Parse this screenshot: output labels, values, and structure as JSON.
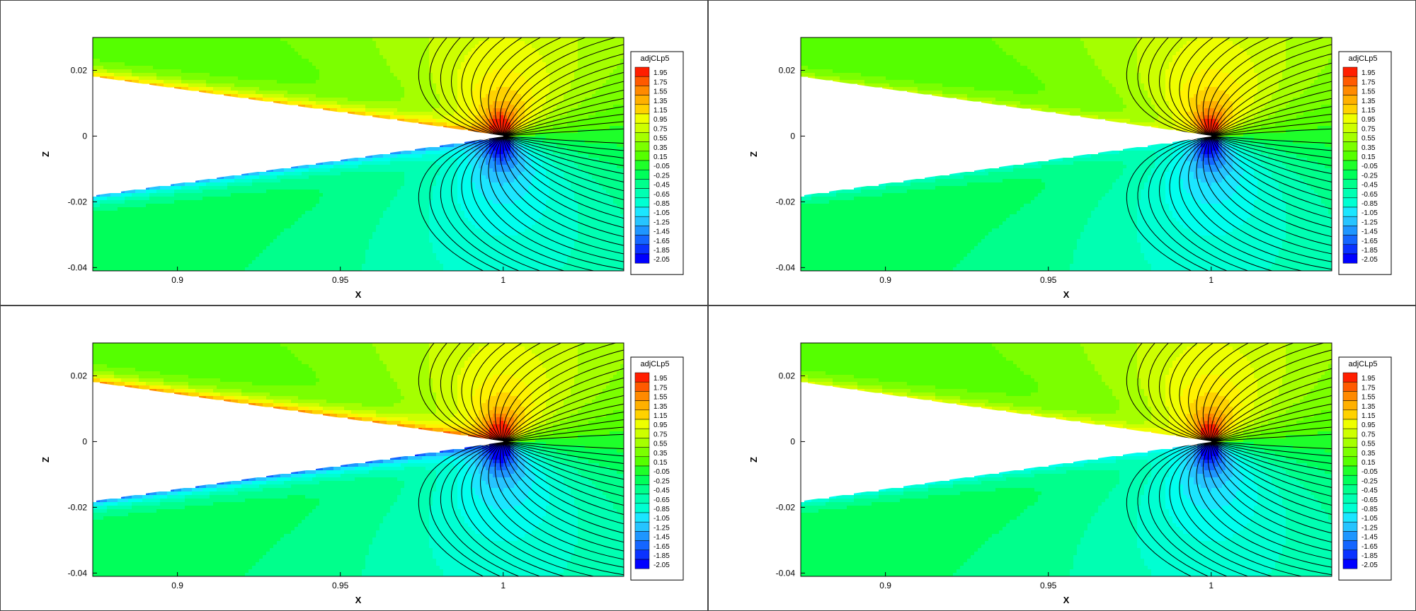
{
  "palette": {
    "levels": [
      "#0000ff",
      "#0a32ff",
      "#1466ff",
      "#1e96ff",
      "#26c4ff",
      "#1be6ff",
      "#00ffee",
      "#00ffd2",
      "#00ffb2",
      "#00ff8c",
      "#00ff5a",
      "#1eff2a",
      "#55ff00",
      "#7bff00",
      "#a5ff00",
      "#cdff00",
      "#eeff00",
      "#fff200",
      "#ffd200",
      "#ffb000",
      "#ff8a00",
      "#ff5a00",
      "#ff1e00"
    ],
    "outline": "#000000"
  },
  "chart_data": [
    {
      "type": "heatmap",
      "subtype": "filled-contour",
      "xlabel": "X",
      "ylabel": "Z",
      "xlim": [
        0.874,
        1.037
      ],
      "ylim": [
        -0.041,
        0.03
      ],
      "xticks": [
        {
          "v": 0.9,
          "label": "0.9"
        },
        {
          "v": 0.95,
          "label": "0.95"
        },
        {
          "v": 1,
          "label": "1"
        }
      ],
      "yticks": [
        {
          "v": 0.02,
          "label": "0.02"
        },
        {
          "v": 0,
          "label": "0"
        },
        {
          "v": -0.02,
          "label": "-0.02"
        },
        {
          "v": -0.04,
          "label": "-0.04"
        }
      ],
      "legend": {
        "title": "adjCLp5",
        "position": "right",
        "levels": [
          "1.95",
          "1.75",
          "1.55",
          "1.35",
          "1.15",
          "0.95",
          "0.75",
          "0.55",
          "0.35",
          "0.15",
          "-0.05",
          "-0.25",
          "-0.45",
          "-0.65",
          "-0.85",
          "-1.05",
          "-1.25",
          "-1.45",
          "-1.65",
          "-1.85",
          "-2.05"
        ]
      },
      "body": {
        "leading_edge": [
          1.0,
          0.0
        ],
        "upper_far": [
          0.874,
          0.018
        ],
        "lower_far": [
          0.874,
          -0.018
        ]
      },
      "surface_band_strength": 1.0
    },
    {
      "type": "heatmap",
      "subtype": "filled-contour",
      "xlabel": "X",
      "ylabel": "Z",
      "xlim": [
        0.874,
        1.037
      ],
      "ylim": [
        -0.041,
        0.03
      ],
      "xticks": [
        {
          "v": 0.9,
          "label": "0.9"
        },
        {
          "v": 0.95,
          "label": "0.95"
        },
        {
          "v": 1,
          "label": "1"
        }
      ],
      "yticks": [
        {
          "v": 0.02,
          "label": "0.02"
        },
        {
          "v": 0,
          "label": "0"
        },
        {
          "v": -0.02,
          "label": "-0.02"
        },
        {
          "v": -0.04,
          "label": "-0.04"
        }
      ],
      "legend": {
        "title": "adjCLp5",
        "position": "right",
        "levels": [
          "1.95",
          "1.75",
          "1.55",
          "1.35",
          "1.15",
          "0.95",
          "0.75",
          "0.55",
          "0.35",
          "0.15",
          "-0.05",
          "-0.25",
          "-0.45",
          "-0.65",
          "-0.85",
          "-1.05",
          "-1.25",
          "-1.45",
          "-1.65",
          "-1.85",
          "-2.05"
        ]
      },
      "body": {
        "leading_edge": [
          1.0,
          0.0
        ],
        "upper_far": [
          0.874,
          0.018
        ],
        "lower_far": [
          0.874,
          -0.018
        ]
      },
      "surface_band_strength": 0.45
    },
    {
      "type": "heatmap",
      "subtype": "filled-contour",
      "xlabel": "X",
      "ylabel": "Z",
      "xlim": [
        0.874,
        1.037
      ],
      "ylim": [
        -0.041,
        0.03
      ],
      "xticks": [
        {
          "v": 0.9,
          "label": "0.9"
        },
        {
          "v": 0.95,
          "label": "0.95"
        },
        {
          "v": 1,
          "label": "1"
        }
      ],
      "yticks": [
        {
          "v": 0.02,
          "label": "0.02"
        },
        {
          "v": 0,
          "label": "0"
        },
        {
          "v": -0.02,
          "label": "-0.02"
        },
        {
          "v": -0.04,
          "label": "-0.04"
        }
      ],
      "legend": {
        "title": "adjCLp5",
        "position": "right",
        "levels": [
          "1.95",
          "1.75",
          "1.55",
          "1.35",
          "1.15",
          "0.95",
          "0.75",
          "0.55",
          "0.35",
          "0.15",
          "-0.05",
          "-0.25",
          "-0.45",
          "-0.65",
          "-0.85",
          "-1.05",
          "-1.25",
          "-1.45",
          "-1.65",
          "-1.85",
          "-2.05"
        ]
      },
      "body": {
        "leading_edge": [
          1.0,
          0.0
        ],
        "upper_far": [
          0.874,
          0.018
        ],
        "lower_far": [
          0.874,
          -0.018
        ]
      },
      "surface_band_strength": 1.15
    },
    {
      "type": "heatmap",
      "subtype": "filled-contour",
      "xlabel": "X",
      "ylabel": "Z",
      "xlim": [
        0.874,
        1.037
      ],
      "ylim": [
        -0.041,
        0.03
      ],
      "xticks": [
        {
          "v": 0.9,
          "label": "0.9"
        },
        {
          "v": 0.95,
          "label": "0.95"
        },
        {
          "v": 1,
          "label": "1"
        }
      ],
      "yticks": [
        {
          "v": 0.02,
          "label": "0.02"
        },
        {
          "v": 0,
          "label": "0"
        },
        {
          "v": -0.02,
          "label": "-0.02"
        },
        {
          "v": -0.04,
          "label": "-0.04"
        }
      ],
      "legend": {
        "title": "adjCLp5",
        "position": "right",
        "levels": [
          "1.95",
          "1.75",
          "1.55",
          "1.35",
          "1.15",
          "0.95",
          "0.75",
          "0.55",
          "0.35",
          "0.15",
          "-0.05",
          "-0.25",
          "-0.45",
          "-0.65",
          "-0.85",
          "-1.05",
          "-1.25",
          "-1.45",
          "-1.65",
          "-1.85",
          "-2.05"
        ]
      },
      "body": {
        "leading_edge": [
          1.0,
          0.0
        ],
        "upper_far": [
          0.874,
          0.018
        ],
        "lower_far": [
          0.874,
          -0.018
        ]
      },
      "surface_band_strength": 0.6
    }
  ]
}
